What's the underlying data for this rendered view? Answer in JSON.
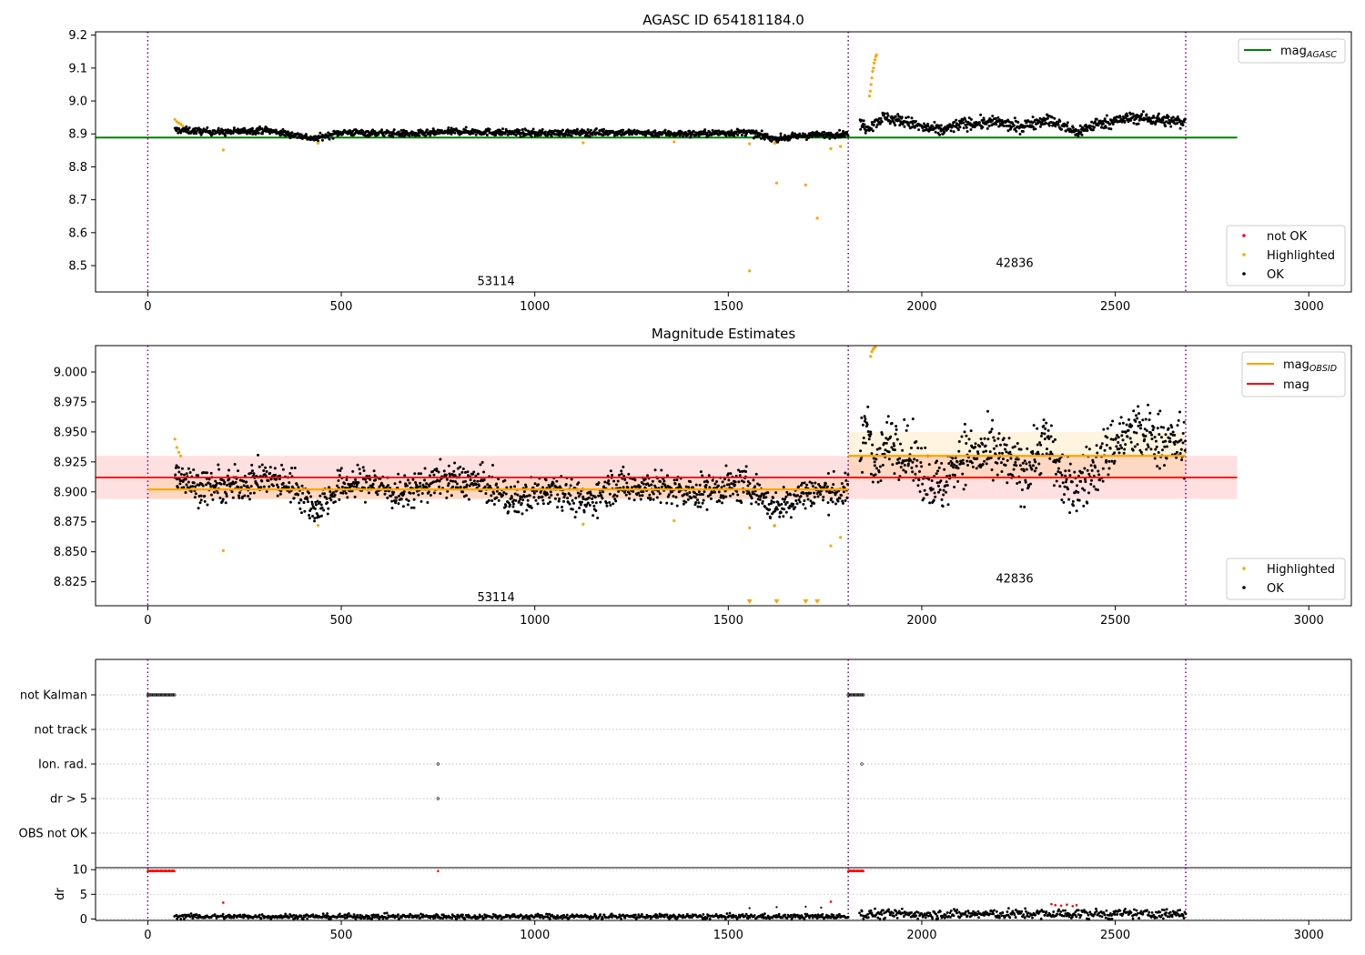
{
  "colors": {
    "ok": "#000000",
    "highlighted": "#ffa500",
    "not_ok": "#ff0000",
    "mag_agasc": "#008000",
    "mag_obsid": "#ffa500",
    "mag": "#ff0000",
    "obs_boundary": "#800080"
  },
  "chart_data": [
    {
      "type": "scatter",
      "title": "AGASC ID 654181184.0",
      "xlabel": "",
      "ylabel": "",
      "xlim": [
        -135,
        3110
      ],
      "ylim": [
        8.42,
        9.21
      ],
      "yticks": [
        8.5,
        8.6,
        8.7,
        8.8,
        8.9,
        9.0,
        9.1,
        9.2
      ],
      "yticklabels": [
        "8.5",
        "8.6",
        "8.7",
        "8.8",
        "8.9",
        "9.0",
        "9.1",
        "9.2"
      ],
      "xticks": [
        0,
        500,
        1000,
        1500,
        2000,
        2500,
        3000
      ],
      "xticklabels": [
        "0",
        "500",
        "1000",
        "1500",
        "2000",
        "2500",
        "3000"
      ],
      "grid": false,
      "legends": [
        {
          "placement": "upper right",
          "entries": [
            {
              "label": "mag",
              "subscript": "AGASC",
              "style": "line",
              "color": "#008000"
            }
          ]
        },
        {
          "placement": "lower right",
          "entries": [
            {
              "label": "not OK",
              "style": "point",
              "color": "#ff0000"
            },
            {
              "label": "Highlighted",
              "style": "point",
              "color": "#ffa500"
            },
            {
              "label": "OK",
              "style": "point",
              "color": "#000000"
            }
          ]
        }
      ],
      "hlines": [
        {
          "y": 8.889,
          "x": [
            -135,
            2815
          ],
          "color": "#008000",
          "name": "mag_AGASC"
        }
      ],
      "vlines": [
        0,
        1810,
        2682
      ],
      "annotations": [
        {
          "text": "53114",
          "x": 900,
          "y": 8.455
        },
        {
          "text": "42836",
          "x": 2240,
          "y": 8.51
        }
      ],
      "ok_segments": [
        {
          "x": [
            70,
            1810
          ],
          "knots": [
            [
              70,
              8.912
            ],
            [
              200,
              8.905
            ],
            [
              300,
              8.912
            ],
            [
              400,
              8.893
            ],
            [
              430,
              8.885
            ],
            [
              500,
              8.905
            ],
            [
              700,
              8.9
            ],
            [
              800,
              8.908
            ],
            [
              1000,
              8.902
            ],
            [
              1200,
              8.905
            ],
            [
              1400,
              8.9
            ],
            [
              1550,
              8.905
            ],
            [
              1620,
              8.885
            ],
            [
              1700,
              8.895
            ],
            [
              1810,
              8.9
            ]
          ],
          "scatter": 0.01
        },
        {
          "x": [
            1840,
            2682
          ],
          "knots": [
            [
              1840,
              8.93
            ],
            [
              1860,
              8.92
            ],
            [
              1900,
              8.95
            ],
            [
              1950,
              8.94
            ],
            [
              2000,
              8.92
            ],
            [
              2050,
              8.91
            ],
            [
              2100,
              8.93
            ],
            [
              2200,
              8.935
            ],
            [
              2250,
              8.92
            ],
            [
              2320,
              8.945
            ],
            [
              2400,
              8.905
            ],
            [
              2450,
              8.93
            ],
            [
              2550,
              8.95
            ],
            [
              2682,
              8.935
            ]
          ],
          "scatter": 0.018
        }
      ],
      "highlighted_points": [
        [
          70,
          8.944
        ],
        [
          75,
          8.937
        ],
        [
          80,
          8.933
        ],
        [
          85,
          8.93
        ],
        [
          90,
          8.925
        ],
        [
          195,
          8.851
        ],
        [
          440,
          8.872
        ],
        [
          1125,
          8.873
        ],
        [
          1360,
          8.876
        ],
        [
          1555,
          8.87
        ],
        [
          1555,
          8.484
        ],
        [
          1620,
          8.872
        ],
        [
          1625,
          8.751
        ],
        [
          1700,
          8.745
        ],
        [
          1730,
          8.644
        ],
        [
          1765,
          8.855
        ],
        [
          1790,
          8.862
        ],
        [
          1865,
          9.015
        ],
        [
          1867,
          9.03
        ],
        [
          1869,
          9.05
        ],
        [
          1871,
          9.07
        ],
        [
          1873,
          9.09
        ],
        [
          1875,
          9.1
        ],
        [
          1877,
          9.115
        ],
        [
          1879,
          9.125
        ],
        [
          1881,
          9.135
        ],
        [
          1883,
          9.14
        ]
      ]
    },
    {
      "type": "scatter",
      "title": "Magnitude Estimates",
      "xlabel": "",
      "ylabel": "",
      "xlim": [
        -135,
        3110
      ],
      "ylim": [
        8.805,
        9.022
      ],
      "yticks": [
        8.825,
        8.85,
        8.875,
        8.9,
        8.925,
        8.95,
        8.975,
        9.0
      ],
      "yticklabels": [
        "8.825",
        "8.850",
        "8.875",
        "8.900",
        "8.925",
        "8.950",
        "8.975",
        "9.000"
      ],
      "xticks": [
        0,
        500,
        1000,
        1500,
        2000,
        2500,
        3000
      ],
      "xticklabels": [
        "0",
        "500",
        "1000",
        "1500",
        "2000",
        "2500",
        "3000"
      ],
      "grid": false,
      "legends": [
        {
          "placement": "upper right",
          "entries": [
            {
              "label": "mag",
              "subscript": "OBSID",
              "style": "line",
              "color": "#ffa500"
            },
            {
              "label": "mag",
              "style": "line",
              "color": "#ff0000"
            }
          ]
        },
        {
          "placement": "lower right",
          "entries": [
            {
              "label": "Highlighted",
              "style": "point",
              "color": "#ffa500"
            },
            {
              "label": "OK",
              "style": "point",
              "color": "#000000"
            }
          ]
        }
      ],
      "mag": {
        "value": 8.912,
        "band": [
          8.894,
          8.93
        ],
        "x": [
          -135,
          2815
        ]
      },
      "mag_obsid": [
        {
          "x": [
            0,
            1810
          ],
          "value": 8.902,
          "band": [
            8.894,
            8.91
          ]
        },
        {
          "x": [
            1810,
            2682
          ],
          "value": 8.93,
          "band": [
            8.91,
            8.95
          ]
        }
      ],
      "vlines": [
        0,
        1810,
        2682
      ],
      "annotations": [
        {
          "text": "53114",
          "x": 900,
          "y": 8.8125
        },
        {
          "text": "42836",
          "x": 2240,
          "y": 8.828
        }
      ],
      "ok_segments": [
        {
          "x": [
            70,
            1810
          ],
          "knots": [
            [
              70,
              8.918
            ],
            [
              120,
              8.905
            ],
            [
              200,
              8.903
            ],
            [
              300,
              8.912
            ],
            [
              380,
              8.905
            ],
            [
              430,
              8.885
            ],
            [
              500,
              8.905
            ],
            [
              580,
              8.908
            ],
            [
              650,
              8.897
            ],
            [
              750,
              8.91
            ],
            [
              850,
              8.908
            ],
            [
              950,
              8.892
            ],
            [
              1050,
              8.905
            ],
            [
              1130,
              8.89
            ],
            [
              1200,
              8.905
            ],
            [
              1300,
              8.905
            ],
            [
              1400,
              8.898
            ],
            [
              1500,
              8.905
            ],
            [
              1560,
              8.905
            ],
            [
              1620,
              8.885
            ],
            [
              1700,
              8.9
            ],
            [
              1810,
              8.9
            ]
          ],
          "scatter": 0.014
        },
        {
          "x": [
            1840,
            2682
          ],
          "knots": [
            [
              1840,
              8.93
            ],
            [
              1860,
              8.96
            ],
            [
              1880,
              8.92
            ],
            [
              1920,
              8.945
            ],
            [
              1950,
              8.935
            ],
            [
              2000,
              8.918
            ],
            [
              2050,
              8.902
            ],
            [
              2100,
              8.932
            ],
            [
              2200,
              8.93
            ],
            [
              2260,
              8.915
            ],
            [
              2320,
              8.945
            ],
            [
              2380,
              8.9
            ],
            [
              2450,
              8.92
            ],
            [
              2500,
              8.942
            ],
            [
              2550,
              8.95
            ],
            [
              2682,
              8.938
            ]
          ],
          "scatter": 0.024
        }
      ],
      "highlighted_points": [
        [
          70,
          8.944
        ],
        [
          75,
          8.937
        ],
        [
          80,
          8.933
        ],
        [
          85,
          8.93
        ],
        [
          195,
          8.851
        ],
        [
          440,
          8.872
        ],
        [
          1125,
          8.873
        ],
        [
          1360,
          8.876
        ],
        [
          1555,
          8.87
        ],
        [
          1620,
          8.872
        ],
        [
          1765,
          8.855
        ],
        [
          1790,
          8.862
        ],
        [
          1868,
          9.013
        ],
        [
          1871,
          9.017
        ],
        [
          1874,
          9.019
        ],
        [
          1877,
          9.02
        ],
        [
          1880,
          9.021
        ]
      ],
      "below_range_markers": [
        1555,
        1625,
        1700,
        1730
      ]
    },
    {
      "type": "scatter",
      "title": "",
      "xlabel": "",
      "ylabel": "",
      "xlim": [
        -135,
        3110
      ],
      "categories": [
        "not Kalman",
        "not track",
        "Ion. rad.",
        "dr > 5",
        "OBS not OK"
      ],
      "grid": true,
      "flag_points": {
        "not Kalman": [
          [
            0,
            70
          ],
          [
            1810,
            1850
          ]
        ],
        "not track": [],
        "Ion. rad.": [
          [
            750,
            750
          ],
          [
            1845,
            1845
          ]
        ],
        "dr > 5": [
          [
            750,
            750
          ]
        ],
        "OBS not OK": []
      },
      "vlines": [
        0,
        1810,
        2682
      ]
    },
    {
      "type": "scatter",
      "title": "",
      "xlabel": "",
      "ylabel": "dr",
      "xlim": [
        -135,
        3110
      ],
      "ylim": [
        -0.3,
        10.4
      ],
      "yticks": [
        0,
        5,
        10
      ],
      "yticklabels": [
        "0",
        "5",
        "10"
      ],
      "xticks": [
        0,
        500,
        1000,
        1500,
        2000,
        2500,
        3000
      ],
      "xticklabels": [
        "0",
        "500",
        "1000",
        "1500",
        "2000",
        "2500",
        "3000"
      ],
      "grid": true,
      "clipped_points_x": [
        [
          0,
          70
        ],
        [
          1810,
          1850
        ]
      ],
      "clipped_single_x": [
        750
      ],
      "red_points": [
        [
          195,
          3.3
        ],
        [
          1765,
          3.5
        ],
        [
          2335,
          3.0
        ],
        [
          2345,
          2.8
        ],
        [
          2360,
          2.7
        ],
        [
          2375,
          2.9
        ],
        [
          2390,
          2.6
        ],
        [
          2400,
          2.8
        ]
      ],
      "ok_segments": [
        {
          "x": [
            70,
            1810
          ],
          "level": 0.5,
          "scatter": 0.5
        },
        {
          "x": [
            1840,
            2682
          ],
          "level": 1.0,
          "scatter": 1.0
        }
      ],
      "sparse_points": [
        [
          1555,
          2.2
        ],
        [
          1625,
          2.4
        ],
        [
          1700,
          2.5
        ],
        [
          1740,
          2.3
        ]
      ],
      "vlines": [
        0,
        1810,
        2682
      ]
    }
  ]
}
